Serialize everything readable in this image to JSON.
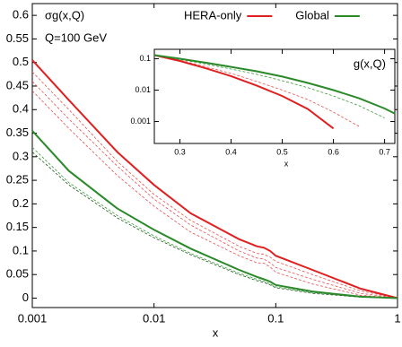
{
  "chart_data": [
    {
      "type": "line",
      "title": "σg(x,Q)",
      "subtitle": "Q=100 GeV",
      "x_label": "x",
      "xscale": "log",
      "legend": "top-right",
      "x": [
        0.001,
        0.002,
        0.005,
        0.01,
        0.02,
        0.05,
        0.07,
        0.08,
        0.09,
        0.1,
        0.2,
        0.5,
        1
      ],
      "xlim": [
        0.001,
        1
      ],
      "xticks": [
        0.001,
        0.01,
        0.1,
        1
      ],
      "ylim": [
        -0.02,
        0.625
      ],
      "yticks": [
        0,
        0.05,
        0.1,
        0.15,
        0.2,
        0.25,
        0.3,
        0.35,
        0.4,
        0.45,
        0.5,
        0.55,
        0.6
      ],
      "series": [
        {
          "color": "#e85050",
          "style": "dashed",
          "values": [
            0.48,
            0.4,
            0.29,
            0.22,
            0.165,
            0.11,
            0.095,
            0.093,
            0.087,
            0.078,
            0.05,
            0.015,
            0
          ]
        },
        {
          "color": "#e85050",
          "style": "dashed",
          "values": [
            0.46,
            0.38,
            0.28,
            0.21,
            0.155,
            0.1,
            0.085,
            0.083,
            0.075,
            0.065,
            0.04,
            0.01,
            0
          ]
        },
        {
          "color": "#e85050",
          "style": "dashed",
          "values": [
            0.44,
            0.36,
            0.26,
            0.195,
            0.14,
            0.09,
            0.075,
            0.074,
            0.066,
            0.055,
            0.03,
            0.006,
            0
          ]
        },
        {
          "color": "#3a9a3a",
          "style": "dashed",
          "values": [
            0.32,
            0.245,
            0.175,
            0.132,
            0.095,
            0.053,
            0.04,
            0.036,
            0.03,
            0.024,
            0.012,
            0.002,
            0
          ]
        },
        {
          "color": "#1a5a1a",
          "style": "dashed",
          "values": [
            0.31,
            0.24,
            0.17,
            0.128,
            0.092,
            0.05,
            0.037,
            0.033,
            0.028,
            0.022,
            0.01,
            0.002,
            0
          ]
        },
        {
          "name": "HERA-only",
          "color": "#e02020",
          "values": [
            0.505,
            0.42,
            0.31,
            0.24,
            0.18,
            0.125,
            0.11,
            0.107,
            0.1,
            0.09,
            0.06,
            0.02,
            0
          ]
        },
        {
          "name": "Global",
          "color": "#2a8a2a",
          "values": [
            0.355,
            0.27,
            0.19,
            0.145,
            0.105,
            0.06,
            0.045,
            0.04,
            0.035,
            0.028,
            0.014,
            0.003,
            0
          ]
        }
      ]
    },
    {
      "type": "line",
      "annotation": "g(x,Q)",
      "x_label": "x",
      "yscale": "log",
      "x": [
        0.25,
        0.3,
        0.35,
        0.4,
        0.45,
        0.5,
        0.55,
        0.6,
        0.65,
        0.7,
        0.72
      ],
      "xlim": [
        0.25,
        0.72
      ],
      "xticks": [
        0.3,
        0.4,
        0.5,
        0.6,
        0.7
      ],
      "ylim": [
        0.0002,
        0.2
      ],
      "yticks": [
        0.1,
        0.01,
        0.001
      ],
      "series": [
        {
          "color": "#e85050",
          "style": "dashed",
          "values": [
            0.13,
            0.09,
            0.056,
            0.034,
            0.019,
            0.01,
            0.005,
            0.002,
            0.0007,
            null,
            null
          ]
        },
        {
          "color": "#3a9a3a",
          "style": "dashed",
          "values": [
            0.13,
            0.095,
            0.068,
            0.047,
            0.032,
            0.02,
            0.012,
            0.0065,
            0.0032,
            0.0013,
            null
          ]
        },
        {
          "color": "#e02020",
          "values": [
            0.13,
            0.085,
            0.05,
            0.028,
            0.014,
            0.0065,
            0.0025,
            0.0006,
            null,
            null,
            null
          ]
        },
        {
          "color": "#2a8a2a",
          "values": [
            0.13,
            0.1,
            0.075,
            0.055,
            0.04,
            0.027,
            0.017,
            0.01,
            0.0055,
            0.0026,
            0.0018
          ]
        }
      ]
    }
  ]
}
